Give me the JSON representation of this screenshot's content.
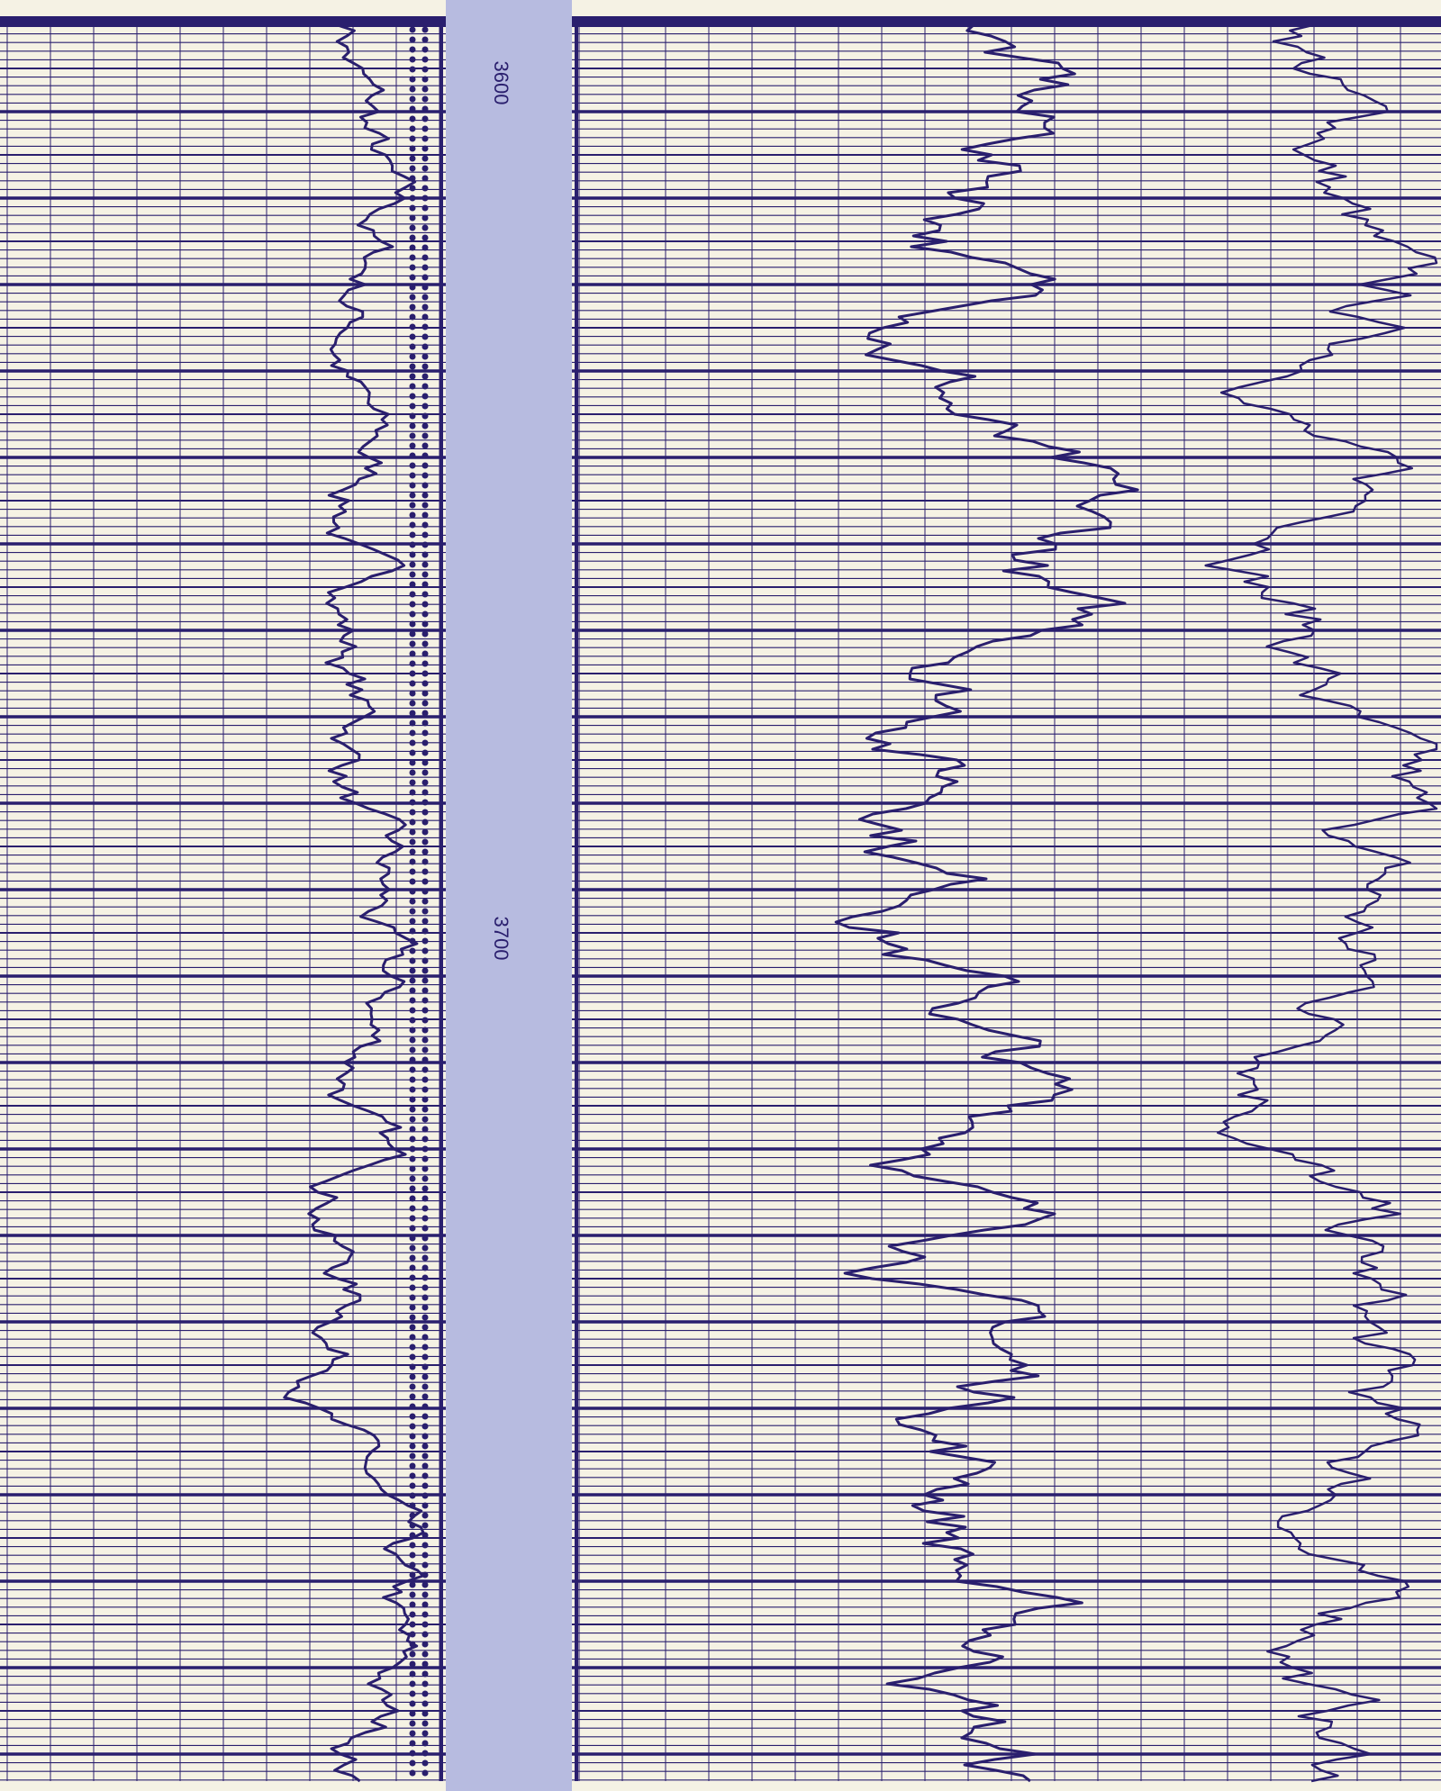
{
  "depth_labels": [
    "3600",
    "3700"
  ]
}
